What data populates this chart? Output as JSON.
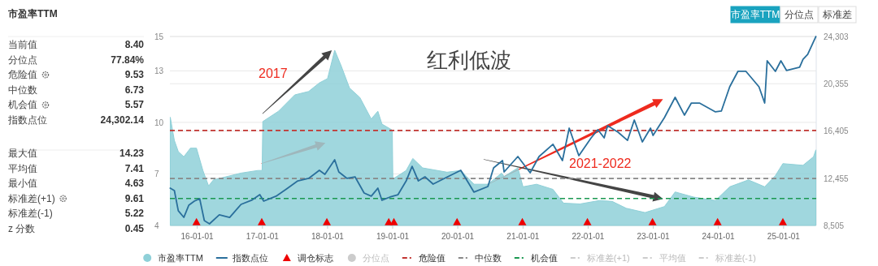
{
  "chart_data": [
    {
      "type": "other",
      "title": "市盈率TTM",
      "annotations": [
        "当前值",
        "8.40",
        "分位点",
        "77.84%",
        "危险值",
        "9.53",
        "中位数",
        "6.73",
        "机会值",
        "5.57",
        "指数点位",
        "24,302.14",
        "最大值",
        "14.23",
        "平均值",
        "7.41",
        "最小值",
        "4.63",
        "标准差(+1)",
        "9.61",
        "标准差(-1)",
        "5.22",
        "z 分数",
        "0.45"
      ]
    },
    {
      "type": "area",
      "annotations": [
        "市盈率TTM",
        "分位点",
        "标准差",
        "红利低波",
        "2017",
        "2021-2022"
      ],
      "xlim": [
        "2015-08-01",
        "2025-07-03"
      ],
      "xticks": [
        {
          "value": "2016-01-01",
          "label": "16-01-01"
        },
        {
          "value": "2017-01-01",
          "label": "17-01-01"
        },
        {
          "value": "2018-01-01",
          "label": "18-01-01"
        },
        {
          "value": "2019-01-01",
          "label": "19-01-01"
        },
        {
          "value": "2020-01-01",
          "label": "20-01-01"
        },
        {
          "value": "2021-01-01",
          "label": "21-01-01"
        },
        {
          "value": "2022-01-01",
          "label": "22-01-01"
        },
        {
          "value": "2023-01-01",
          "label": "23-01-01"
        },
        {
          "value": "2024-01-01",
          "label": "24-01-01"
        },
        {
          "value": "2025-01-01",
          "label": "25-01-01"
        }
      ],
      "ylim": [
        4,
        15
      ],
      "yticks": [
        4,
        7,
        10,
        13,
        15
      ],
      "y2lim": [
        8505,
        24303
      ],
      "y2ticks": [
        {
          "value": 8505,
          "label": "8,505"
        },
        {
          "value": 12455,
          "label": "12,455"
        },
        {
          "value": 16405,
          "label": "16,405"
        },
        {
          "value": 20355,
          "label": "20,355"
        },
        {
          "value": 24303,
          "label": "24,303"
        }
      ],
      "grid": "y",
      "legend": "bottom",
      "series": [
        {
          "name": "市盈率TTM",
          "type": "area",
          "color": "#8fd0d8",
          "x": [
            "2015-08-03",
            "2015-08-26",
            "2015-09-17",
            "2015-10-18",
            "2015-11-24",
            "2015-12-28",
            "2016-02-02",
            "2016-03-05",
            "2016-04-01",
            "2016-09-03",
            "2016-12-07",
            "2016-12-30",
            "2017-01-03",
            "2017-04-01",
            "2017-07-01",
            "2017-09-17",
            "2017-11-16",
            "2018-01-01",
            "2018-02-10",
            "2018-03-18",
            "2018-05-04",
            "2018-07-01",
            "2018-09-03",
            "2018-10-10",
            "2018-11-02",
            "2018-12-30",
            "2019-01-02",
            "2019-03-18",
            "2019-04-24",
            "2019-06-18",
            "2019-11-02",
            "2020-01-18",
            "2020-04-01",
            "2020-06-18",
            "2020-09-03",
            "2020-09-17",
            "2020-12-03",
            "2021-01-01",
            "2021-03-18",
            "2021-06-18",
            "2021-08-16",
            "2021-11-16",
            "2022-03-05",
            "2022-05-16",
            "2022-08-03",
            "2022-11-16",
            "2023-03-05",
            "2023-05-04",
            "2023-08-16",
            "2023-12-16",
            "2024-03-05",
            "2024-06-18",
            "2024-09-17",
            "2024-11-16",
            "2024-12-28",
            "2025-04-20",
            "2025-06-18",
            "2025-07-01"
          ],
          "values": [
            10.3,
            8.95,
            8.3,
            8.0,
            8.5,
            8.5,
            7.2,
            6.3,
            6.65,
            7.05,
            7.2,
            7.2,
            10.05,
            10.65,
            11.6,
            11.8,
            12.3,
            12.55,
            14.2,
            13.3,
            12.0,
            11.45,
            10.2,
            10.65,
            9.9,
            9.55,
            6.7,
            7.2,
            7.9,
            7.35,
            7.1,
            7.2,
            6.4,
            6.4,
            7.05,
            6.85,
            7.35,
            6.25,
            6.4,
            6.1,
            5.3,
            5.25,
            5.45,
            5.4,
            5.0,
            4.75,
            5.1,
            5.95,
            5.65,
            5.45,
            6.25,
            6.65,
            6.25,
            6.9,
            7.6,
            7.5,
            8.0,
            8.4
          ]
        },
        {
          "name": "指数点位",
          "type": "line",
          "axis": "y2",
          "color": "#2a6f9c",
          "x": [
            "2015-08-03",
            "2015-08-26",
            "2015-09-17",
            "2015-10-18",
            "2015-11-15",
            "2015-12-16",
            "2016-01-15",
            "2016-02-10",
            "2016-03-10",
            "2016-05-04",
            "2016-07-01",
            "2016-09-03",
            "2016-11-01",
            "2016-12-17",
            "2017-01-08",
            "2017-03-18",
            "2017-05-16",
            "2017-07-18",
            "2017-09-17",
            "2017-11-16",
            "2017-12-17",
            "2018-02-10",
            "2018-03-05",
            "2018-04-20",
            "2018-06-04",
            "2018-07-25",
            "2018-09-03",
            "2018-10-10",
            "2018-11-02",
            "2018-12-17",
            "2019-01-31",
            "2019-03-18",
            "2019-04-20",
            "2019-05-25",
            "2019-07-01",
            "2019-08-16",
            "2019-10-18",
            "2020-01-18",
            "2020-03-05",
            "2020-04-01",
            "2020-06-18",
            "2020-07-20",
            "2020-09-08",
            "2020-09-17",
            "2020-12-03",
            "2021-02-10",
            "2021-04-01",
            "2021-06-18",
            "2021-08-10",
            "2021-09-17",
            "2021-11-10",
            "2022-01-18",
            "2022-02-25",
            "2022-04-01",
            "2022-04-20",
            "2022-06-18",
            "2022-08-10",
            "2022-09-17",
            "2022-11-01",
            "2022-12-17",
            "2022-12-31",
            "2023-03-05",
            "2023-05-04",
            "2023-06-25",
            "2023-08-03",
            "2023-09-17",
            "2023-12-16",
            "2024-01-18",
            "2024-03-05",
            "2024-04-20",
            "2024-06-04",
            "2024-08-16",
            "2024-09-17",
            "2024-10-01",
            "2024-11-16",
            "2024-12-17",
            "2025-01-18",
            "2025-04-01",
            "2025-04-20",
            "2025-05-16",
            "2025-07-01"
          ],
          "values": [
            11620,
            11420,
            9730,
            9180,
            10200,
            10540,
            10740,
            8910,
            8640,
            9390,
            9180,
            10270,
            10610,
            11080,
            10540,
            10950,
            11560,
            12230,
            12440,
            13120,
            12780,
            14000,
            12980,
            12440,
            12570,
            11220,
            10950,
            11620,
            10610,
            10880,
            11080,
            12230,
            13450,
            12230,
            12570,
            11960,
            12440,
            13120,
            11960,
            11290,
            11760,
            13320,
            13930,
            12980,
            14270,
            12910,
            14270,
            15290,
            13930,
            16640,
            14340,
            15830,
            16510,
            15830,
            16840,
            16300,
            15620,
            17320,
            15490,
            16640,
            16030,
            17520,
            19220,
            17730,
            18740,
            18740,
            18000,
            18070,
            20100,
            21390,
            21390,
            20100,
            18740,
            22270,
            21390,
            22270,
            21460,
            21730,
            22400,
            22810,
            24300
          ]
        },
        {
          "name": "调仓标志",
          "type": "scatter",
          "marker": "triangle",
          "color": "#ee0000",
          "x": [
            "2015-12-28",
            "2016-12-28",
            "2017-12-28",
            "2018-12-10",
            "2019-01-08",
            "2019-12-28",
            "2020-12-28",
            "2021-12-28",
            "2022-12-28",
            "2023-12-28",
            "2024-12-28"
          ],
          "values": [
            4.2,
            4.2,
            4.2,
            4.2,
            4.2,
            4.2,
            4.2,
            4.2,
            4.2,
            4.2,
            4.2
          ]
        },
        {
          "name": "分位点",
          "type": "scatter",
          "marker": "circle",
          "color": "#cccccc"
        },
        {
          "name": "标准差(+1)",
          "type": "line",
          "line_style": "dashed",
          "color": "#cccccc"
        },
        {
          "name": "平均值",
          "type": "line",
          "line_style": "dashed",
          "color": "#cccccc"
        },
        {
          "name": "标准差(-1)",
          "type": "line",
          "line_style": "dashed",
          "color": "#cccccc"
        }
      ],
      "ref_lines": [
        {
          "axis": "y",
          "value": 9.53,
          "label": "危险值",
          "color": "#c23531",
          "line_style": "dashed"
        },
        {
          "axis": "y",
          "value": 6.73,
          "label": "中位数",
          "color": "#888888",
          "line_style": "dashed"
        },
        {
          "axis": "y",
          "value": 5.57,
          "label": "机会值",
          "color": "#1a9850",
          "line_style": "dashed"
        }
      ]
    }
  ]
}
